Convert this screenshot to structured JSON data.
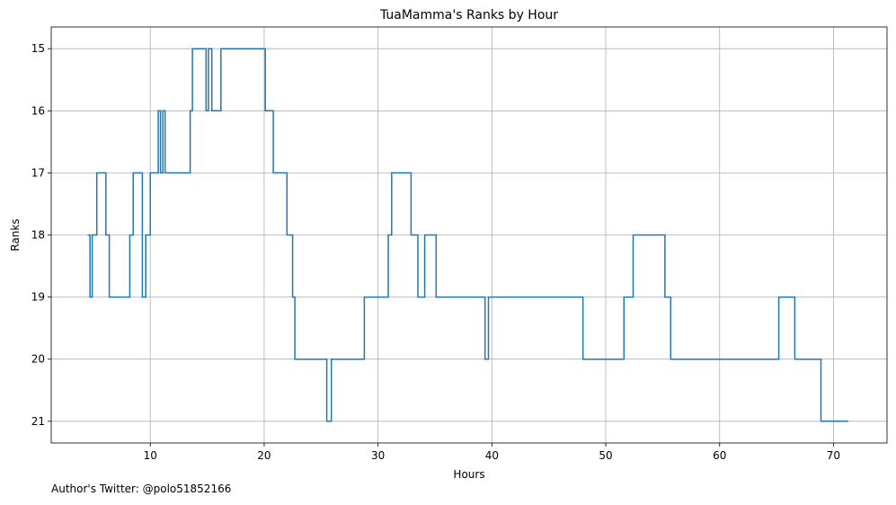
{
  "chart_data": {
    "type": "line",
    "step": true,
    "title": "TuaMamma's Ranks by Hour",
    "xlabel": "Hours",
    "ylabel": "Ranks",
    "xlim": [
      1.3,
      74.7
    ],
    "ylim": [
      21.35,
      14.65
    ],
    "y_inverted": true,
    "grid": true,
    "x_ticks": [
      10,
      20,
      30,
      40,
      50,
      60,
      70
    ],
    "y_ticks": [
      15,
      16,
      17,
      18,
      19,
      20,
      21
    ],
    "line_color": "#1f77b4",
    "x": [
      4.5,
      4.7,
      4.9,
      5.3,
      5.6,
      6.1,
      6.4,
      8.2,
      8.5,
      9.3,
      9.6,
      10.0,
      10.7,
      10.9,
      11.1,
      11.3,
      11.5,
      13.5,
      13.7,
      14.9,
      15.1,
      15.4,
      15.6,
      16.2,
      20.1,
      20.5,
      20.8,
      22.0,
      22.5,
      22.7,
      25.5,
      25.9,
      28.8,
      30.9,
      31.2,
      32.9,
      33.5,
      34.1,
      35.1,
      39.4,
      39.7,
      48.0,
      51.6,
      52.4,
      55.2,
      55.7,
      65.2,
      66.6,
      68.9,
      71.3
    ],
    "y": [
      18,
      19,
      18,
      17,
      17,
      18,
      19,
      18,
      17,
      19,
      18,
      17,
      16,
      17,
      16,
      17,
      17,
      16,
      15,
      16,
      15,
      16,
      16,
      15,
      16,
      16,
      17,
      18,
      19,
      20,
      21,
      20,
      19,
      18,
      17,
      18,
      19,
      18,
      19,
      20,
      19,
      20,
      19,
      18,
      19,
      20,
      19,
      20,
      21,
      21
    ],
    "footnote": "Author's Twitter: @polo51852166"
  }
}
